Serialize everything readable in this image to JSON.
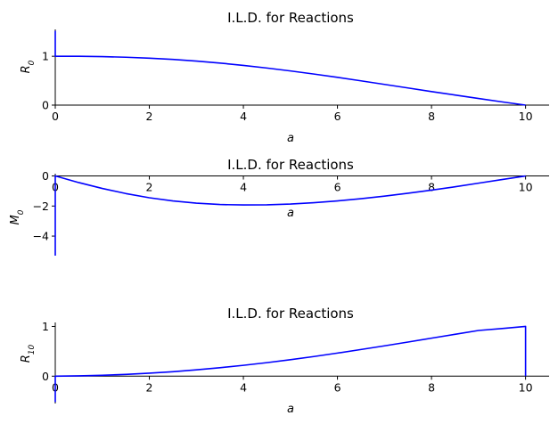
{
  "colors": {
    "line": "#0000ff",
    "axis": "#000000",
    "background": "#ffffff"
  },
  "chart_data": [
    {
      "type": "line",
      "title": "I.L.D. for Reactions",
      "xlabel": "a",
      "ylabel_base": "R",
      "ylabel_sub": "0",
      "xlim": [
        0,
        10.5
      ],
      "ylim": [
        0,
        1.55
      ],
      "xticks": [
        0,
        2,
        4,
        6,
        8,
        10
      ],
      "yticks": [
        0,
        1
      ],
      "grid": false,
      "series": [
        {
          "x": [
            0,
            0,
            0,
            0.5,
            1,
            1.5,
            2,
            2.5,
            3,
            3.5,
            4,
            4.5,
            5,
            5.5,
            6,
            6.5,
            7,
            7.5,
            8,
            8.5,
            9,
            9.5,
            10
          ],
          "y": [
            1.52,
            1.0,
            1.0,
            0.999,
            0.993,
            0.98,
            0.961,
            0.935,
            0.901,
            0.861,
            0.813,
            0.759,
            0.7,
            0.636,
            0.568,
            0.497,
            0.424,
            0.351,
            0.277,
            0.206,
            0.136,
            0.066,
            0.0
          ]
        }
      ]
    },
    {
      "type": "line",
      "title": "I.L.D. for Reactions",
      "xlabel": "a",
      "ylabel_base": "M",
      "ylabel_sub": "0",
      "xlim": [
        0,
        10.5
      ],
      "ylim": [
        -5.3,
        0.15
      ],
      "xticks": [
        0,
        2,
        4,
        6,
        8,
        10
      ],
      "yticks": [
        0,
        -2,
        -4
      ],
      "grid": false,
      "series": [
        {
          "x": [
            0,
            0,
            0,
            0.5,
            1,
            1.5,
            2,
            2.5,
            3,
            3.5,
            4,
            4.5,
            5,
            5.5,
            6,
            6.5,
            7,
            7.5,
            8,
            8.5,
            9,
            9.5,
            10
          ],
          "y": [
            -5.3,
            -0.3,
            0.0,
            -0.44,
            -0.83,
            -1.17,
            -1.45,
            -1.66,
            -1.81,
            -1.9,
            -1.93,
            -1.92,
            -1.87,
            -1.78,
            -1.66,
            -1.51,
            -1.34,
            -1.15,
            -0.94,
            -0.72,
            -0.48,
            -0.24,
            0.0
          ]
        }
      ]
    },
    {
      "type": "line",
      "title": "I.L.D. for Reactions",
      "xlabel": "a",
      "ylabel_base": "R",
      "ylabel_sub": "10",
      "xlim": [
        0,
        10.5
      ],
      "ylim": [
        -0.55,
        1.08
      ],
      "xticks": [
        0,
        2,
        4,
        6,
        8,
        10
      ],
      "yticks": [
        0,
        1
      ],
      "grid": false,
      "series": [
        {
          "x": [
            0,
            0,
            0,
            0.5,
            1,
            1.5,
            2,
            2.5,
            3,
            3.5,
            4,
            4.5,
            5,
            5.5,
            6,
            6.5,
            7,
            7.5,
            8,
            8.5,
            9,
            9.5,
            10,
            10
          ],
          "y": [
            -0.52,
            0.0,
            0.0,
            0.006,
            0.018,
            0.036,
            0.06,
            0.09,
            0.127,
            0.17,
            0.218,
            0.272,
            0.331,
            0.395,
            0.464,
            0.536,
            0.61,
            0.686,
            0.764,
            0.842,
            0.919,
            0.958,
            1.0,
            0.0
          ]
        }
      ]
    }
  ]
}
